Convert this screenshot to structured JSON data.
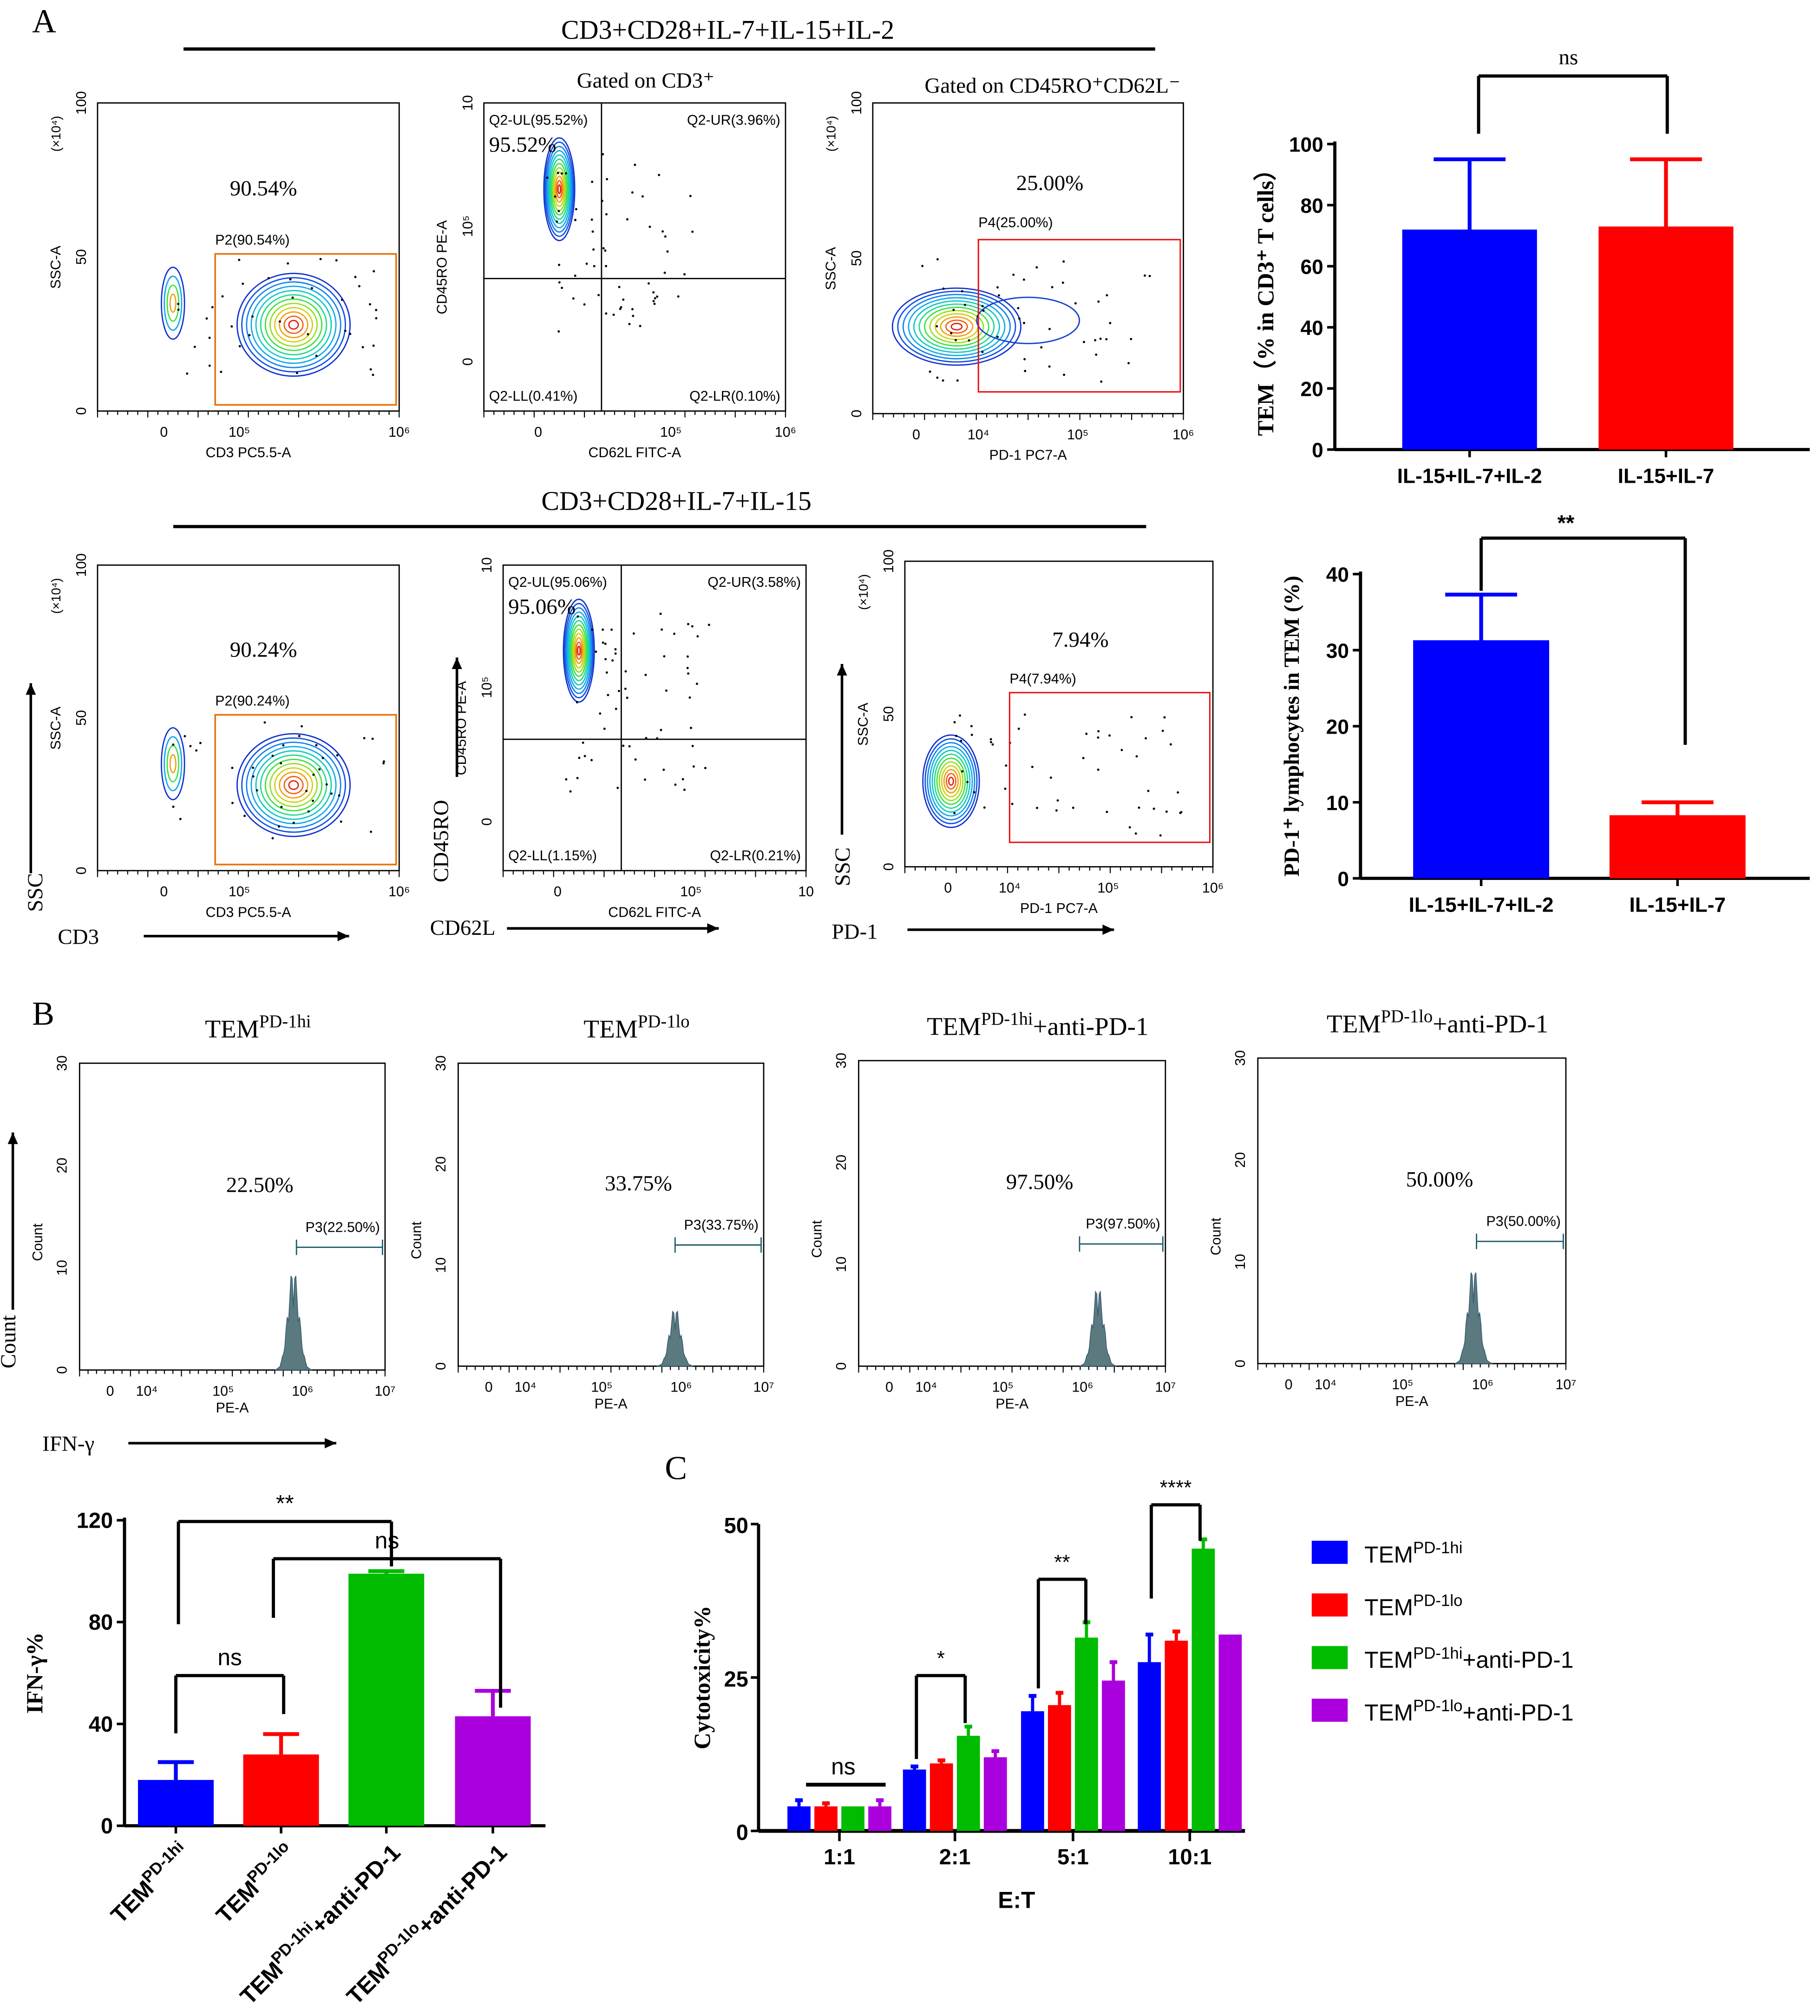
{
  "panel_labels": {
    "a": "A",
    "b": "B",
    "c": "C"
  },
  "panel_a": {
    "rows": [
      {
        "title": "CD3+CD28+IL-7+IL-15+IL-2",
        "gate_titles": [
          "Gated on CD3⁺",
          "Gated on CD45RO⁺CD62L⁻"
        ],
        "plots": [
          {
            "kind": "ssc",
            "x_label": "CD3 PC5.5-A",
            "y_label": "SSC-A",
            "y_unit": "(×10⁴)",
            "y_ticks": [
              "0",
              "50",
              "100"
            ],
            "x_ticks": [
              "0",
              "10⁵",
              "10⁶"
            ],
            "percent": "90.54%",
            "gate_label": "P2(90.54%)",
            "gate_color": "#e8730c"
          },
          {
            "kind": "quad",
            "x_label": "CD62L FITC-A",
            "y_label": "CD45RO PE-A",
            "y_ticks": [
              "0",
              "10⁵",
              "10"
            ],
            "x_ticks": [
              "0",
              "10⁵",
              "10⁶"
            ],
            "percent": "95.52%",
            "quadrants": [
              "Q2-UL(95.52%)",
              "Q2-UR(3.96%)",
              "Q2-LL(0.41%)",
              "Q2-LR(0.10%)"
            ]
          },
          {
            "kind": "pd1",
            "x_label": "PD-1 PC7-A",
            "y_label": "SSC-A",
            "y_unit": "(×10⁴)",
            "y_ticks": [
              "0",
              "50",
              "100"
            ],
            "x_ticks": [
              "0",
              "10⁴",
              "10⁵",
              "10⁶"
            ],
            "percent": "25.00%",
            "gate_label": "P4(25.00%)",
            "gate_color": "#e81010"
          }
        ]
      },
      {
        "title": "CD3+CD28+IL-7+IL-15",
        "plots": [
          {
            "kind": "ssc",
            "x_label": "CD3 PC5.5-A",
            "y_label": "SSC-A",
            "y_unit": "(×10⁴)",
            "y_ticks": [
              "0",
              "50",
              "100"
            ],
            "x_ticks": [
              "0",
              "10⁵",
              "10⁶"
            ],
            "percent": "90.24%",
            "gate_label": "P2(90.24%)",
            "gate_color": "#e8730c"
          },
          {
            "kind": "quad",
            "x_label": "CD62L FITC-A",
            "y_label": "CD45RO PE-A",
            "y_ticks": [
              "0",
              "10⁵",
              "10"
            ],
            "x_ticks": [
              "0",
              "10⁵",
              "10"
            ],
            "percent": "95.06%",
            "quadrants": [
              "Q2-UL(95.06%)",
              "Q2-UR(3.58%)",
              "Q2-LL(1.15%)",
              "Q2-LR(0.21%)"
            ]
          },
          {
            "kind": "pd1",
            "x_label": "PD-1 PC7-A",
            "y_label": "SSC-A",
            "y_unit": "(×10⁴)",
            "y_ticks": [
              "0",
              "50",
              "100"
            ],
            "x_ticks": [
              "0",
              "10⁴",
              "10⁵",
              "10⁶"
            ],
            "percent": "7.94%",
            "gate_label": "P4(7.94%)",
            "gate_color": "#e81010"
          }
        ],
        "axis_arrows": [
          "SSC",
          "CD3",
          "CD45RO",
          "CD62L",
          "SSC",
          "PD-1"
        ]
      }
    ]
  },
  "panel_b": {
    "plots": [
      {
        "title": {
          "base": "TEM",
          "sup": "PD-1hi",
          "suffix": ""
        },
        "percent": "22.50%",
        "gate_label": "P3(22.50%)"
      },
      {
        "title": {
          "base": "TEM",
          "sup": "PD-1lo",
          "suffix": ""
        },
        "percent": "33.75%",
        "gate_label": "P3(33.75%)"
      },
      {
        "title": {
          "base": "TEM",
          "sup": "PD-1hi",
          "suffix": "+anti-PD-1"
        },
        "percent": "97.50%",
        "gate_label": "P3(97.50%)"
      },
      {
        "title": {
          "base": "TEM",
          "sup": "PD-1lo",
          "suffix": "+anti-PD-1"
        },
        "percent": "50.00%",
        "gate_label": "P3(50.00%)"
      }
    ],
    "x_label": "PE-A",
    "y_label": "Count",
    "x_ticks": [
      "0",
      "10⁴",
      "10⁵",
      "10⁶",
      "10⁷"
    ],
    "y_ticks": [
      "0",
      "10",
      "20",
      "30"
    ],
    "axis_arrows": [
      "Count",
      "IFN-γ"
    ]
  },
  "chart_data": [
    {
      "type": "bar",
      "id": "tem",
      "ylabel": "TEM（% in CD3⁺ T cells）",
      "categories": [
        "IL-15+IL-7+IL-2",
        "IL-15+IL-7"
      ],
      "values": [
        72,
        73
      ],
      "errors": [
        23,
        22
      ],
      "ylim": [
        0,
        100
      ],
      "yticks": [
        0,
        20,
        40,
        60,
        80,
        100
      ],
      "colors": [
        "#0000ff",
        "#ff0000"
      ],
      "significance": [
        {
          "label": "ns",
          "between": [
            0,
            1
          ]
        }
      ]
    },
    {
      "type": "bar",
      "id": "pd1",
      "ylabel": "PD-1⁺ lymphocytes in TEM (%)",
      "categories": [
        "IL-15+IL-7+IL-2",
        "IL-15+IL-7"
      ],
      "values": [
        31.3,
        8.3
      ],
      "errors": [
        6.0,
        1.7
      ],
      "ylim": [
        0,
        40
      ],
      "yticks": [
        0,
        10,
        20,
        30,
        40
      ],
      "colors": [
        "#0000ff",
        "#ff0000"
      ],
      "significance": [
        {
          "label": "**",
          "between": [
            0,
            1
          ]
        }
      ]
    },
    {
      "type": "bar",
      "id": "ifn",
      "ylabel": "IFN-γ%",
      "categories": [
        {
          "base": "TEM",
          "sup": "PD-1hi",
          "suffix": ""
        },
        {
          "base": "TEM",
          "sup": "PD-1lo",
          "suffix": ""
        },
        {
          "base": "TEM",
          "sup": "PD-1hi",
          "suffix": "+anti-PD-1"
        },
        {
          "base": "TEM",
          "sup": "PD-1lo",
          "suffix": "+anti-PD-1"
        }
      ],
      "values": [
        18,
        28,
        99,
        43
      ],
      "errors": [
        7,
        8,
        1,
        10
      ],
      "ylim": [
        0,
        120
      ],
      "yticks": [
        0,
        40,
        80,
        120
      ],
      "colors": [
        "#0000ff",
        "#ff0000",
        "#00bb00",
        "#aa00dd"
      ],
      "significance": [
        {
          "label": "**",
          "between": [
            0,
            2
          ]
        },
        {
          "label": "ns",
          "between": [
            1,
            3
          ]
        },
        {
          "label": "ns",
          "between": [
            0,
            1
          ]
        }
      ]
    },
    {
      "type": "bar",
      "id": "cyto",
      "ylabel": "Cytotoxicity%",
      "xlabel": "E:T",
      "categories": [
        "1:1",
        "2:1",
        "5:1",
        "10:1"
      ],
      "ylim": [
        0,
        50
      ],
      "yticks": [
        0,
        25,
        50
      ],
      "series": [
        {
          "name": {
            "base": "TEM",
            "sup": "PD-1hi",
            "suffix": ""
          },
          "color": "#0000ff",
          "values": [
            4,
            10,
            19.5,
            27.5
          ],
          "errors": [
            1,
            0.5,
            2.5,
            4.5
          ]
        },
        {
          "name": {
            "base": "TEM",
            "sup": "PD-1lo",
            "suffix": ""
          },
          "color": "#ff0000",
          "values": [
            4,
            11,
            20.5,
            31
          ],
          "errors": [
            0.5,
            0.5,
            2,
            1.5
          ]
        },
        {
          "name": {
            "base": "TEM",
            "sup": "PD-1hi",
            "suffix": "+anti-PD-1"
          },
          "color": "#00bb00",
          "values": [
            4,
            15.5,
            31.5,
            46
          ],
          "errors": [
            0,
            1.5,
            2.5,
            1.5
          ]
        },
        {
          "name": {
            "base": "TEM",
            "sup": "PD-1lo",
            "suffix": "+anti-PD-1"
          },
          "color": "#aa00dd",
          "values": [
            4,
            12,
            24.5,
            32
          ],
          "errors": [
            1,
            1,
            3,
            0
          ]
        }
      ],
      "significance": [
        {
          "label": "ns",
          "group": 0
        },
        {
          "label": "*",
          "group": 1
        },
        {
          "label": "**",
          "group": 2
        },
        {
          "label": "****",
          "group": 3
        }
      ],
      "legend": "right"
    }
  ]
}
